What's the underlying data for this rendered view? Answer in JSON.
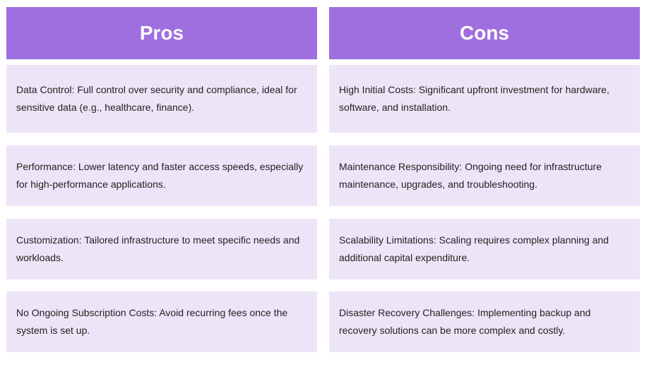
{
  "table": {
    "headers": [
      "Pros",
      "Cons"
    ],
    "columns": [
      [
        "Data Control: Full control over security and compliance, ideal for sensitive data (e.g., healthcare, finance).",
        "Performance: Lower latency and faster access speeds, especially for high-performance applications.",
        "Customization: Tailored infrastructure to meet specific needs and workloads.",
        "No Ongoing Subscription Costs: Avoid recurring fees once the system is set up."
      ],
      [
        "High Initial Costs: Significant upfront investment for hardware, software, and installation.",
        "Maintenance Responsibility: Ongoing need for infrastructure maintenance, upgrades, and troubleshooting.",
        "Scalability Limitations: Scaling requires complex planning and additional capital expenditure.",
        "Disaster Recovery Challenges: Implementing backup and recovery solutions can be more complex and costly."
      ]
    ]
  }
}
